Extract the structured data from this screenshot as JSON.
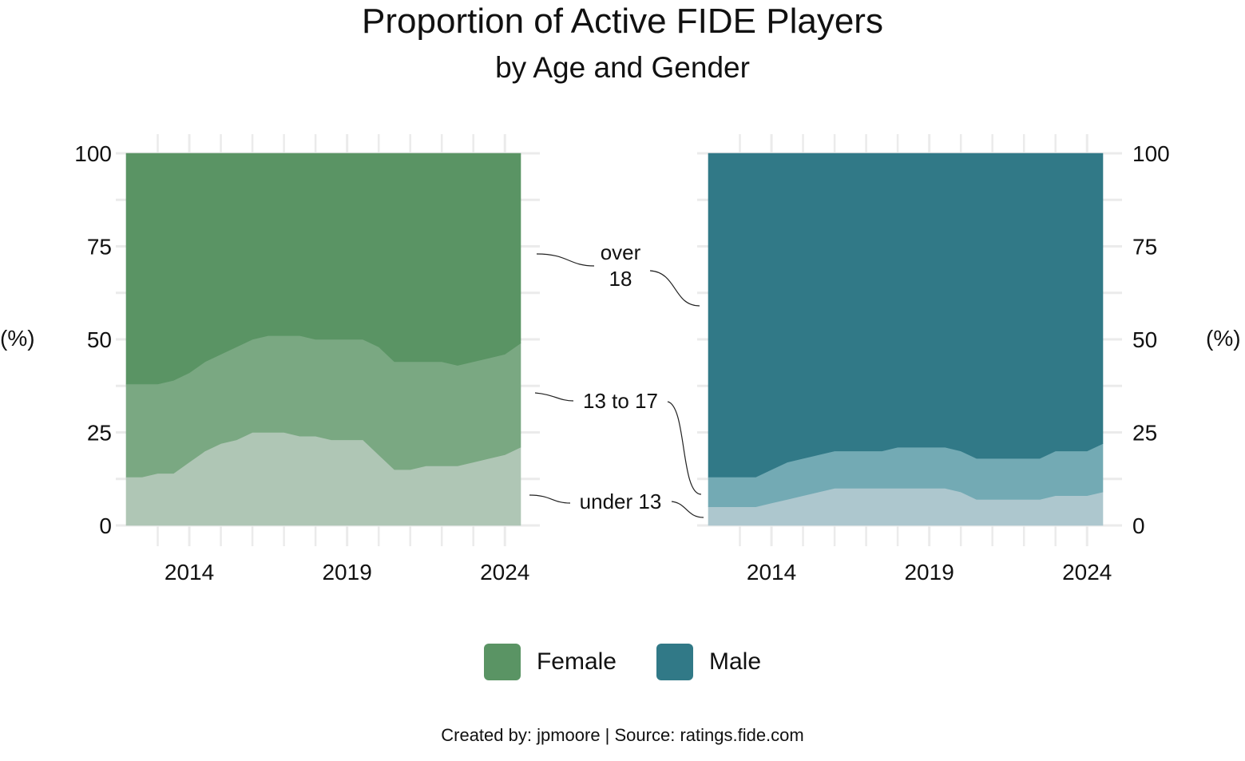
{
  "title": "Proportion of Active FIDE Players",
  "subtitle": "by Age and Gender",
  "caption": "Created by: jpmoore | Source: ratings.fide.com",
  "ylabel": "(%)",
  "annotations": {
    "over18": [
      "over",
      "18"
    ],
    "age13to17": "13 to 17",
    "under13": "under 13"
  },
  "legend": [
    {
      "label": "Female",
      "color": "#5a9464"
    },
    {
      "label": "Male",
      "color": "#317987"
    }
  ],
  "chart_data": {
    "type": "area",
    "stacked": true,
    "x": [
      2012,
      2012.5,
      2013,
      2013.5,
      2014,
      2014.5,
      2015,
      2015.5,
      2016,
      2016.5,
      2017,
      2017.5,
      2018,
      2018.5,
      2019,
      2019.5,
      2020,
      2020.5,
      2021,
      2021.5,
      2022,
      2022.5,
      2023,
      2023.5,
      2024,
      2024.5
    ],
    "xlim": [
      2012,
      2024.5
    ],
    "xticks": [
      2014,
      2019,
      2024
    ],
    "ylim": [
      0,
      100
    ],
    "yticks": [
      0,
      25,
      50,
      75,
      100
    ],
    "grid": true,
    "legend_position": "bottom",
    "panels": [
      {
        "name": "Female",
        "series": [
          {
            "name": "under 13",
            "color": "#afc6b5",
            "values": [
              13,
              13,
              14,
              14,
              17,
              20,
              22,
              23,
              25,
              25,
              25,
              24,
              24,
              23,
              23,
              23,
              19,
              15,
              15,
              16,
              16,
              16,
              17,
              18,
              19,
              21
            ]
          },
          {
            "name": "13 to 17",
            "color": "#7aa882",
            "values": [
              25,
              25,
              24,
              25,
              24,
              24,
              24,
              25,
              25,
              26,
              26,
              27,
              26,
              27,
              27,
              27,
              29,
              29,
              29,
              28,
              28,
              27,
              27,
              27,
              27,
              28
            ]
          },
          {
            "name": "over 18",
            "color": "#5a9464",
            "values": [
              62,
              62,
              62,
              61,
              59,
              56,
              54,
              52,
              50,
              49,
              49,
              49,
              50,
              50,
              50,
              50,
              52,
              56,
              56,
              56,
              56,
              57,
              56,
              55,
              54,
              51
            ]
          }
        ]
      },
      {
        "name": "Male",
        "series": [
          {
            "name": "under 13",
            "color": "#adc7ce",
            "values": [
              5,
              5,
              5,
              5,
              6,
              7,
              8,
              9,
              10,
              10,
              10,
              10,
              10,
              10,
              10,
              10,
              9,
              7,
              7,
              7,
              7,
              7,
              8,
              8,
              8,
              9
            ]
          },
          {
            "name": "13 to 17",
            "color": "#73aab4",
            "values": [
              8,
              8,
              8,
              8,
              9,
              10,
              10,
              10,
              10,
              10,
              10,
              10,
              11,
              11,
              11,
              11,
              11,
              11,
              11,
              11,
              11,
              11,
              12,
              12,
              12,
              13
            ]
          },
          {
            "name": "over 18",
            "color": "#317987",
            "values": [
              87,
              87,
              87,
              87,
              85,
              83,
              82,
              81,
              80,
              80,
              80,
              80,
              79,
              79,
              79,
              79,
              80,
              82,
              82,
              82,
              82,
              82,
              80,
              80,
              80,
              78
            ]
          }
        ]
      }
    ]
  }
}
